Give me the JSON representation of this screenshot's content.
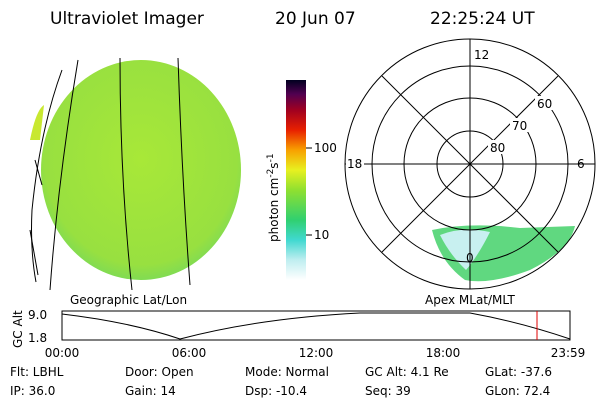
{
  "header": {
    "instrument": "Ultraviolet Imager",
    "date": "20 Jun 07",
    "time": "22:25:24 UT"
  },
  "left_panel": {
    "label": "Geographic Lat/Lon"
  },
  "colorbar": {
    "label": "photon cm",
    "exp1": "-2",
    "unit2": "s",
    "exp2": "-1",
    "ticks": [
      "100",
      "10"
    ]
  },
  "right_panel": {
    "label": "Apex MLat/MLT",
    "lat_labels": [
      "80",
      "70",
      "60"
    ],
    "mlt_labels": [
      "12",
      "18",
      "6",
      "0"
    ]
  },
  "altitude_plot": {
    "ylabel": "GC Alt",
    "yticks": [
      "9.0",
      "1.8"
    ],
    "xticks": [
      "00:00",
      "06:00",
      "12:00",
      "18:00",
      "23:59"
    ]
  },
  "footer": {
    "rows": [
      [
        "Flt: LBHL",
        "Door: Open",
        "Mode: Normal",
        "GC Alt: 4.1 Re",
        "GLat: -37.6"
      ],
      [
        "IP: 36.0",
        "Gain: 14",
        "Dsp: -10.4",
        "Seq: 39",
        "GLon: 72.4"
      ]
    ]
  }
}
